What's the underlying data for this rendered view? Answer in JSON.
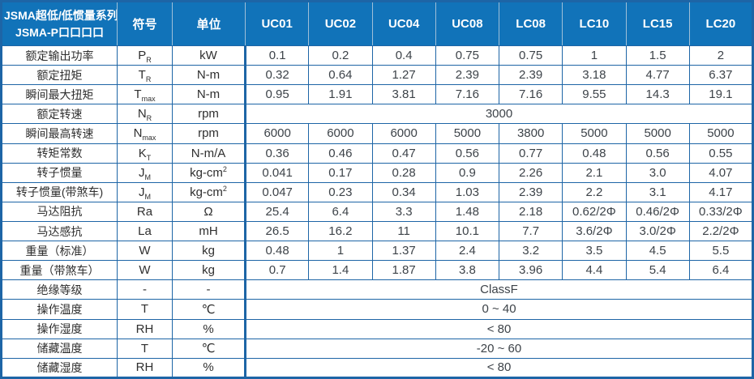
{
  "colors": {
    "header_bg": "#1173b9",
    "border": "#1d65a6",
    "header_divider": "#9fbfd8",
    "header_text": "#ffffff",
    "label_text": "#2f2f2f",
    "value_text": "#3d4349"
  },
  "table": {
    "header": {
      "title_line1": "JSMA超低/低惯量系列",
      "title_line2": "JSMA-P口口口口",
      "symbol_label": "符号",
      "unit_label": "单位",
      "models": [
        "UC01",
        "UC02",
        "UC04",
        "UC08",
        "LC08",
        "LC10",
        "LC15",
        "LC20"
      ]
    },
    "rows": [
      {
        "name": "额定输出功率",
        "symbol_base": "P",
        "symbol_sub": "R",
        "unit": "kW",
        "values": [
          "0.1",
          "0.2",
          "0.4",
          "0.75",
          "0.75",
          "1",
          "1.5",
          "2"
        ]
      },
      {
        "name": "额定扭矩",
        "symbol_base": "T",
        "symbol_sub": "R",
        "unit": "N-m",
        "values": [
          "0.32",
          "0.64",
          "1.27",
          "2.39",
          "2.39",
          "3.18",
          "4.77",
          "6.37"
        ]
      },
      {
        "name": "瞬间最大扭矩",
        "symbol_base": "T",
        "symbol_sub": "max",
        "unit": "N-m",
        "values": [
          "0.95",
          "1.91",
          "3.81",
          "7.16",
          "7.16",
          "9.55",
          "14.3",
          "19.1"
        ]
      },
      {
        "name": "额定转速",
        "symbol_base": "N",
        "symbol_sub": "R",
        "unit": "rpm",
        "merged": "3000"
      },
      {
        "name": "瞬间最高转速",
        "symbol_base": "N",
        "symbol_sub": "max",
        "unit": "rpm",
        "values": [
          "6000",
          "6000",
          "6000",
          "5000",
          "3800",
          "5000",
          "5000",
          "5000"
        ]
      },
      {
        "name": "转矩常数",
        "symbol_base": "K",
        "symbol_sub": "T",
        "unit": "N-m/A",
        "values": [
          "0.36",
          "0.46",
          "0.47",
          "0.56",
          "0.77",
          "0.48",
          "0.56",
          "0.55"
        ]
      },
      {
        "name": "转子惯量",
        "symbol_base": "J",
        "symbol_sub": "M",
        "unit": "kg-cm",
        "unit_sup": "2",
        "values": [
          "0.041",
          "0.17",
          "0.28",
          "0.9",
          "2.26",
          "2.1",
          "3.0",
          "4.07"
        ]
      },
      {
        "name": "转子惯量(带煞车)",
        "symbol_base": "J",
        "symbol_sub": "M",
        "unit": "kg-cm",
        "unit_sup": "2",
        "values": [
          "0.047",
          "0.23",
          "0.34",
          "1.03",
          "2.39",
          "2.2",
          "3.1",
          "4.17"
        ]
      },
      {
        "name": "马达阻抗",
        "symbol_base": "Ra",
        "symbol_sub": "",
        "unit": "Ω",
        "values": [
          "25.4",
          "6.4",
          "3.3",
          "1.48",
          "2.18",
          "0.62/2Φ",
          "0.46/2Φ",
          "0.33/2Φ"
        ]
      },
      {
        "name": "马达感抗",
        "symbol_base": "La",
        "symbol_sub": "",
        "unit": "mH",
        "values": [
          "26.5",
          "16.2",
          "11",
          "10.1",
          "7.7",
          "3.6/2Φ",
          "3.0/2Φ",
          "2.2/2Φ"
        ]
      },
      {
        "name": "重量（标准）",
        "symbol_base": "W",
        "symbol_sub": "",
        "unit": "kg",
        "values": [
          "0.48",
          "1",
          "1.37",
          "2.4",
          "3.2",
          "3.5",
          "4.5",
          "5.5"
        ]
      },
      {
        "name": "重量（带煞车）",
        "symbol_base": "W",
        "symbol_sub": "",
        "unit": "kg",
        "values": [
          "0.7",
          "1.4",
          "1.87",
          "3.8",
          "3.96",
          "4.4",
          "5.4",
          "6.4"
        ]
      },
      {
        "name": "绝缘等级",
        "symbol_base": "-",
        "symbol_sub": "",
        "unit": "-",
        "merged": "ClassF"
      },
      {
        "name": "操作温度",
        "symbol_base": "T",
        "symbol_sub": "",
        "unit": "℃",
        "merged": "0 ~ 40"
      },
      {
        "name": "操作湿度",
        "symbol_base": "RH",
        "symbol_sub": "",
        "unit": "%",
        "merged": "< 80"
      },
      {
        "name": "储藏温度",
        "symbol_base": "T",
        "symbol_sub": "",
        "unit": "℃",
        "merged": "-20 ~ 60"
      },
      {
        "name": "储藏湿度",
        "symbol_base": "RH",
        "symbol_sub": "",
        "unit": "%",
        "merged": "< 80"
      }
    ]
  }
}
